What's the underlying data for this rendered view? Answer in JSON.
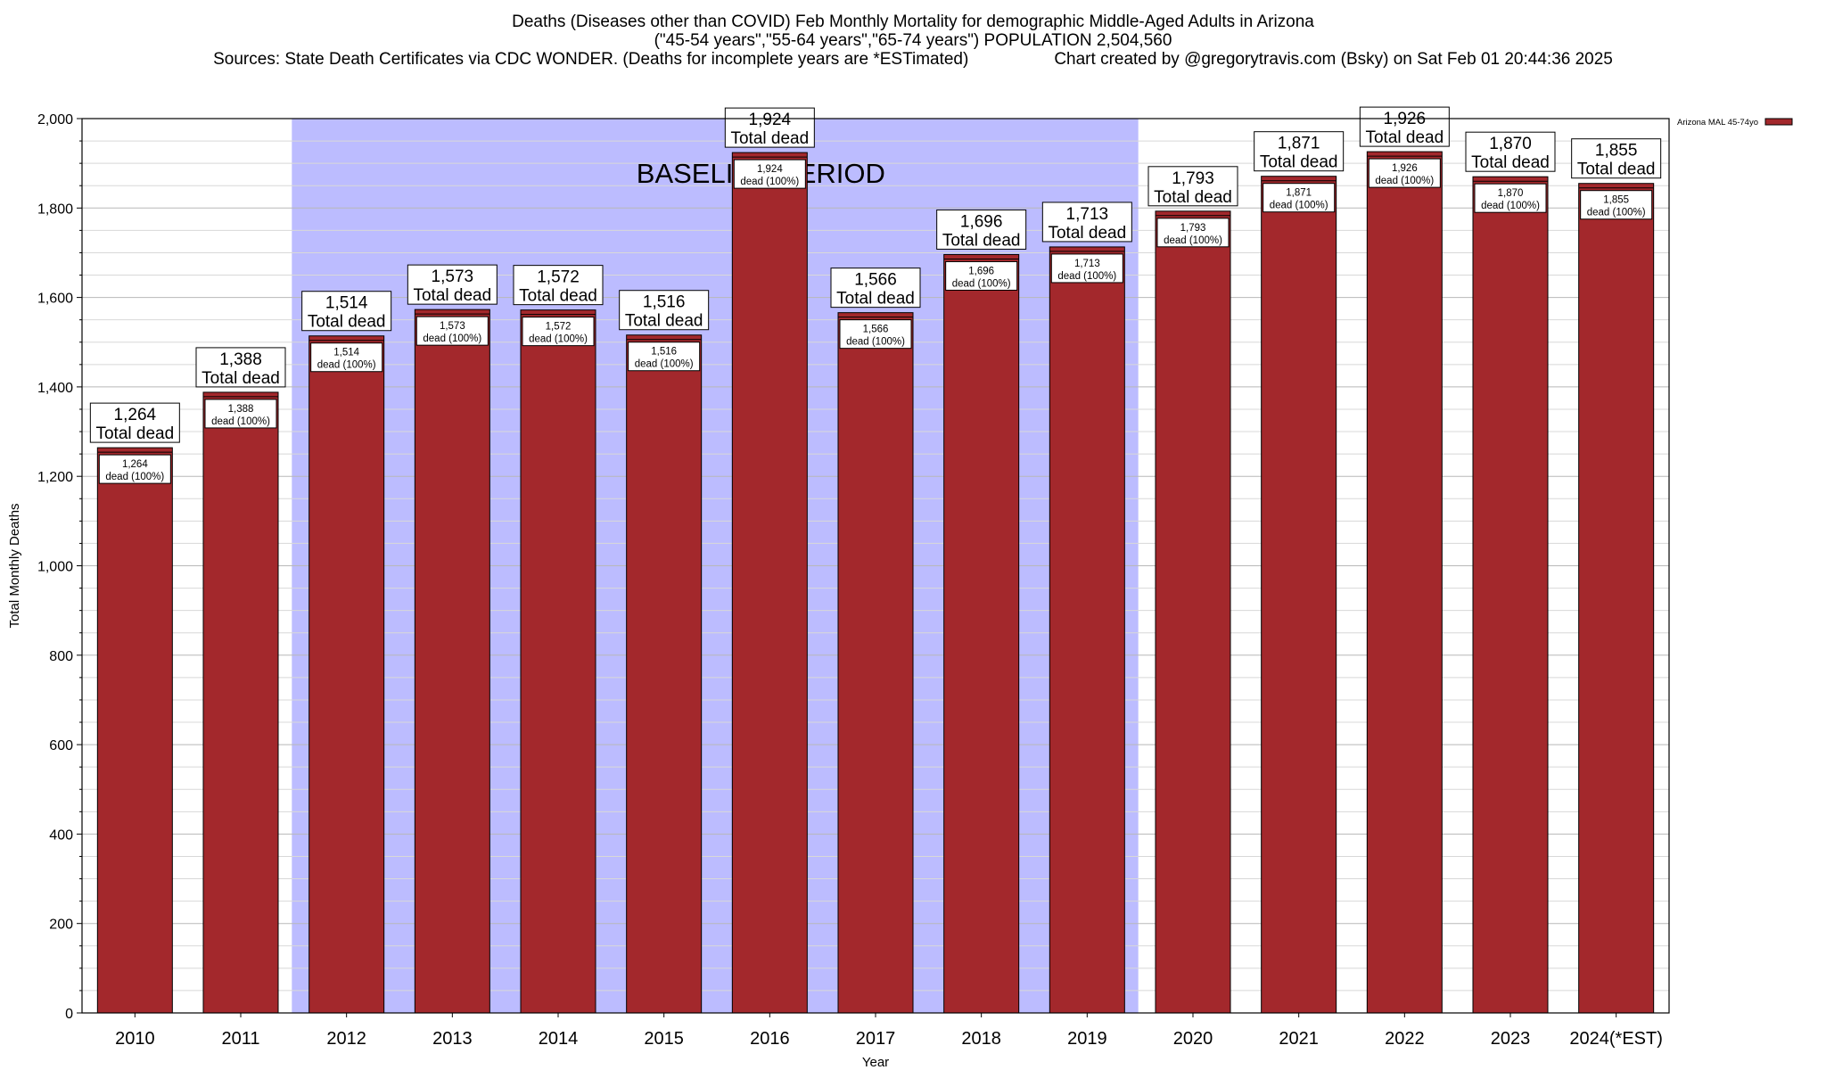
{
  "chart_data": {
    "type": "bar",
    "title": "Deaths (Diseases other than COVID) Feb Monthly Mortality for demographic Middle-Aged Adults in Arizona",
    "subtitle": "(\"45-54 years\",\"55-64 years\",\"65-74 years\") POPULATION 2,504,560",
    "source_line": "Sources: State Death Certificates via CDC WONDER. (Deaths for incomplete years are *ESTimated)",
    "credit_line": "Chart created by @gregorytravis.com (Bsky) on Sat Feb 01 20:44:36 2025",
    "xlabel": "Year",
    "ylabel": "Total Monthly Deaths",
    "ylim": [
      0,
      2000
    ],
    "y_ticks": [
      0,
      200,
      400,
      600,
      800,
      1000,
      1200,
      1400,
      1600,
      1800,
      2000
    ],
    "y_tick_labels": [
      "0",
      "200",
      "400",
      "600",
      "800",
      "1,000",
      "1,200",
      "1,400",
      "1,600",
      "1,800",
      "2,000"
    ],
    "grid": true,
    "legend_position": "top-right",
    "series": [
      {
        "name": "Arizona MAL 45-74yo",
        "color": "#a3282c",
        "values": [
          1264,
          1388,
          1514,
          1573,
          1572,
          1516,
          1924,
          1566,
          1696,
          1713,
          1793,
          1871,
          1926,
          1870,
          1855
        ]
      }
    ],
    "categories": [
      "2010",
      "2011",
      "2012",
      "2013",
      "2014",
      "2015",
      "2016",
      "2017",
      "2018",
      "2019",
      "2020",
      "2021",
      "2022",
      "2023",
      "2024(*EST)"
    ],
    "value_labels": [
      "1,264",
      "1,388",
      "1,514",
      "1,573",
      "1,572",
      "1,516",
      "1,924",
      "1,566",
      "1,696",
      "1,713",
      "1,793",
      "1,871",
      "1,926",
      "1,870",
      "1,855"
    ],
    "total_label_suffix": "Total dead",
    "inner_label_suffix": "dead (100%)",
    "baseline": {
      "label": "BASELINE PERIOD",
      "start": "2012",
      "end": "2019",
      "color": "#bcbcff"
    }
  }
}
